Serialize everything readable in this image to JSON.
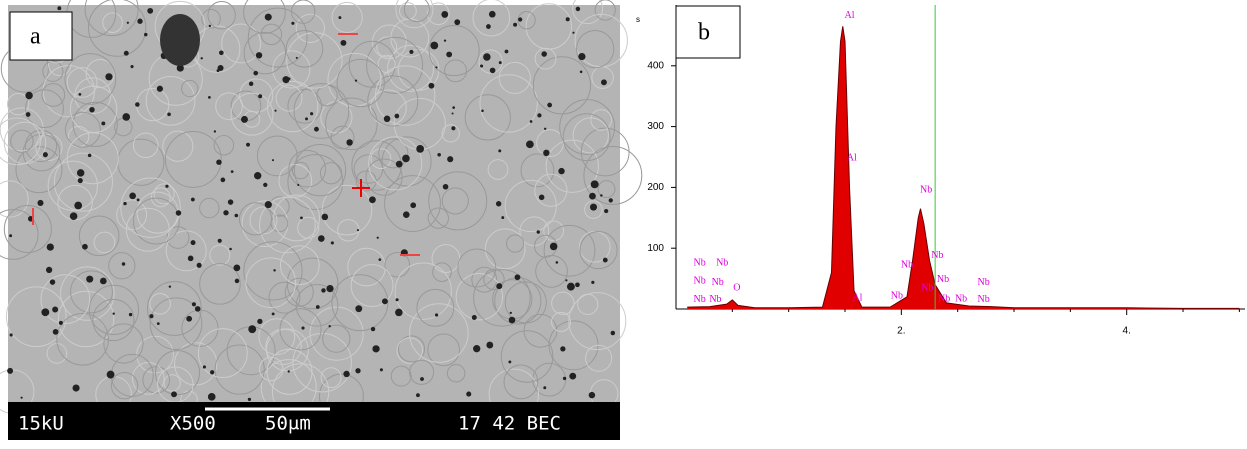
{
  "image": {
    "panel_label": "a",
    "voltage": "15kU",
    "magnification": "X500",
    "scale_bar": "50μm",
    "code": "17 42 BEC"
  },
  "chart_data": {
    "type": "area",
    "panel_label": "b",
    "y_label": "s",
    "x": [
      0.1,
      0.3,
      0.45,
      0.5,
      0.55,
      0.7,
      1.0,
      1.3,
      1.38,
      1.42,
      1.46,
      1.48,
      1.5,
      1.54,
      1.58,
      1.65,
      1.9,
      2.05,
      2.1,
      2.15,
      2.17,
      2.2,
      2.25,
      2.3,
      2.4,
      2.6,
      2.8,
      3.0,
      3.5,
      4.0,
      4.5,
      5.0
    ],
    "series": [
      {
        "color": "#e00000",
        "values": [
          3,
          4,
          8,
          15,
          6,
          2,
          2,
          3,
          60,
          300,
          440,
          465,
          440,
          200,
          30,
          3,
          3,
          20,
          80,
          150,
          165,
          140,
          80,
          40,
          10,
          5,
          4,
          2,
          2,
          2,
          1,
          1
        ]
      }
    ],
    "xlim": [
      0,
      5.05
    ],
    "ylim": [
      0,
      500
    ],
    "xticks": [
      {
        "value": 2,
        "label": "2."
      },
      {
        "value": 4,
        "label": "4."
      }
    ],
    "yticks": [
      100,
      200,
      300,
      400
    ],
    "marker_line": 2.3,
    "marker_color": "#33cc33",
    "label_color": "#e000e0",
    "annotations": [
      {
        "text": "Al",
        "x": 1.54,
        "y": 482
      },
      {
        "text": "Al",
        "x": 1.56,
        "y": 248
      },
      {
        "text": "Al",
        "x": 1.61,
        "y": 18
      },
      {
        "text": "Nb",
        "x": 2.22,
        "y": 195
      },
      {
        "text": "Nb",
        "x": 2.05,
        "y": 72
      },
      {
        "text": "Nb",
        "x": 2.32,
        "y": 88
      },
      {
        "text": "Nb",
        "x": 2.37,
        "y": 48
      },
      {
        "text": "Nb",
        "x": 2.23,
        "y": 34
      },
      {
        "text": "Nb",
        "x": 2.38,
        "y": 16
      },
      {
        "text": "Nb",
        "x": 2.53,
        "y": 16
      },
      {
        "text": "Nb",
        "x": 1.96,
        "y": 21
      },
      {
        "text": "Nb",
        "x": 2.73,
        "y": 43
      },
      {
        "text": "Nb",
        "x": 2.73,
        "y": 15
      },
      {
        "text": "Nb",
        "x": 0.21,
        "y": 75
      },
      {
        "text": "Nb",
        "x": 0.41,
        "y": 75
      },
      {
        "text": "Nb",
        "x": 0.21,
        "y": 46
      },
      {
        "text": "Nb",
        "x": 0.37,
        "y": 43
      },
      {
        "text": "Nb",
        "x": 0.21,
        "y": 15
      },
      {
        "text": "Nb",
        "x": 0.35,
        "y": 15
      },
      {
        "text": "O",
        "x": 0.54,
        "y": 34
      }
    ]
  }
}
